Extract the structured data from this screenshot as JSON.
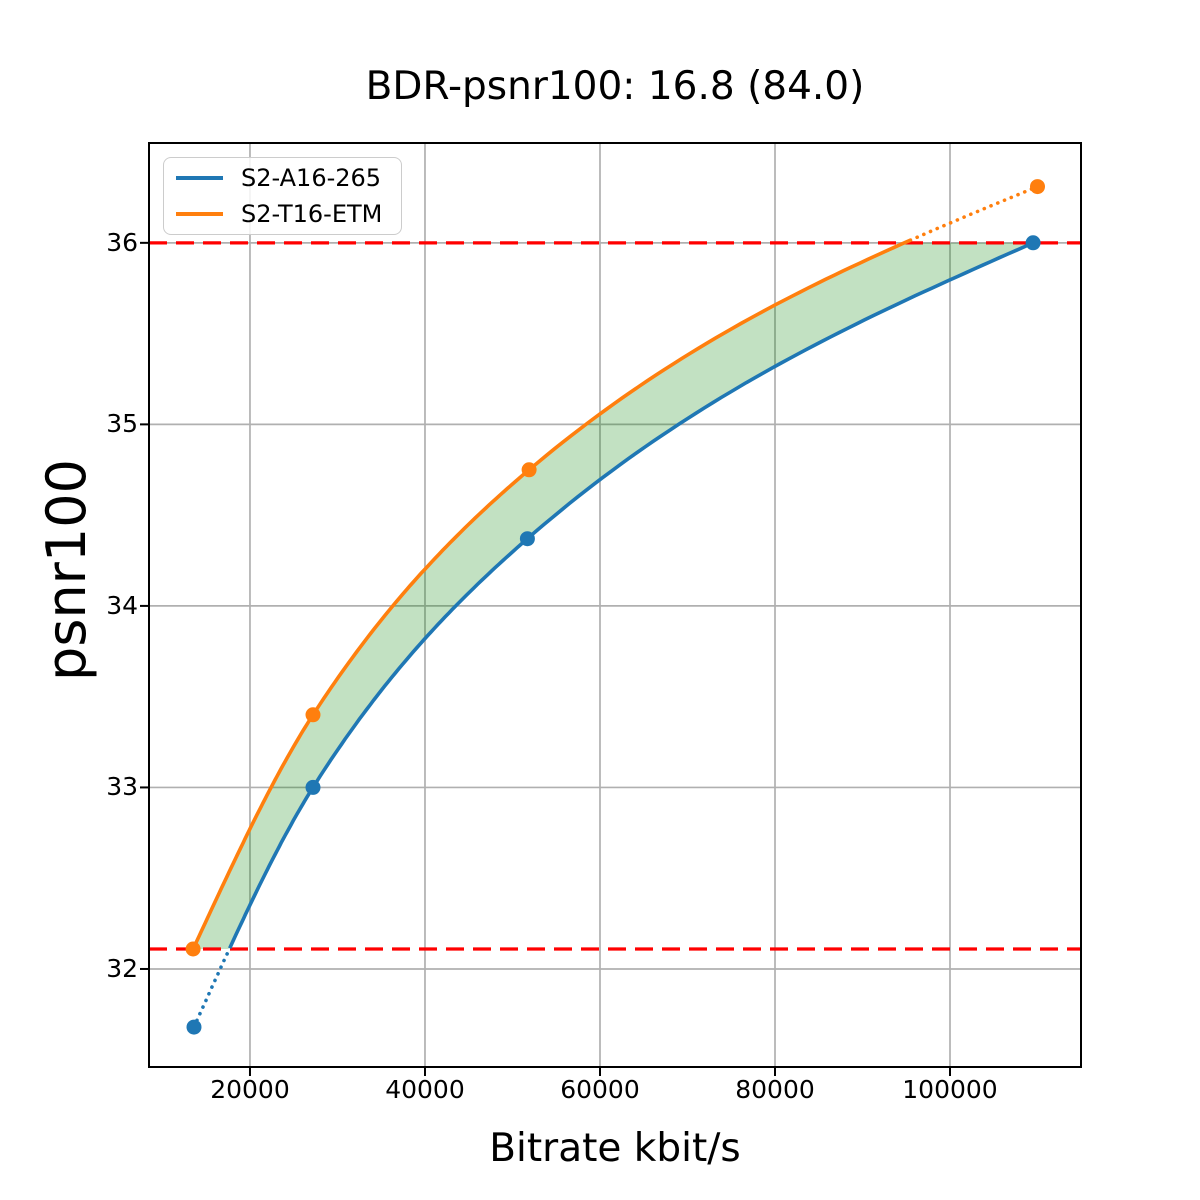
{
  "chart_data": {
    "type": "line",
    "title": "BDR-psnr100: 16.8 (84.0)",
    "xlabel": "Bitrate kbit/s",
    "ylabel": "psnr100",
    "xlim": [
      8460,
      114970
    ],
    "ylim": [
      31.46,
      36.55
    ],
    "x_ticks": [
      20000,
      40000,
      60000,
      80000,
      100000
    ],
    "x_tick_labels": [
      "20000",
      "40000",
      "60000",
      "80000",
      "100000"
    ],
    "y_ticks": [
      32,
      33,
      34,
      35,
      36
    ],
    "y_tick_labels": [
      "32",
      "33",
      "34",
      "35",
      "36"
    ],
    "grid": true,
    "grid_color": "#b0b0b0",
    "legend_position": "upper left",
    "series": [
      {
        "name": "S2-A16-265",
        "color": "#1f77b4",
        "points": [
          [
            13600,
            31.68
          ],
          [
            27200,
            33.0
          ],
          [
            51700,
            34.37
          ],
          [
            109500,
            36.0
          ]
        ]
      },
      {
        "name": "S2-T16-ETM",
        "color": "#ff7f0e",
        "points": [
          [
            13500,
            32.11
          ],
          [
            27200,
            33.4
          ],
          [
            51900,
            34.75
          ],
          [
            110000,
            36.31
          ]
        ]
      }
    ],
    "interp_region_y": [
      32.11,
      36.0
    ],
    "hlines": [
      {
        "y": 36.0,
        "color": "#ff0000",
        "style": "dashed"
      },
      {
        "y": 32.11,
        "color": "#ff0000",
        "style": "dashed"
      }
    ],
    "shaded_region": {
      "between": "curves",
      "color": "#008000",
      "alpha": 0.24
    }
  }
}
